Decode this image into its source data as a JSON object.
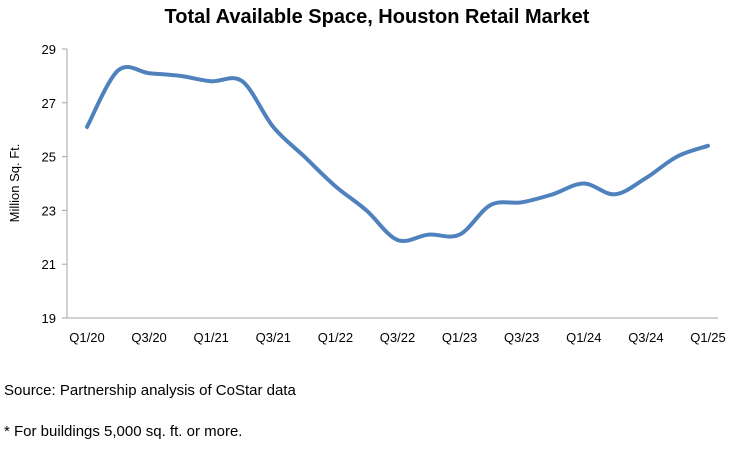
{
  "notes": {
    "source": "Source: Partnership analysis of CoStar data",
    "footnote": "* For buildings 5,000 sq. ft. or more."
  },
  "chart_data": {
    "type": "line",
    "title": "Total Available Space, Houston Retail Market",
    "xlabel": "",
    "ylabel": "Million Sq. Ft.",
    "ylim": [
      19,
      29
    ],
    "yticks": [
      19,
      21,
      23,
      25,
      27,
      29
    ],
    "grid": false,
    "legend": "none",
    "line_color": "#4f81bd",
    "categories": [
      "Q1/20",
      "Q2/20",
      "Q3/20",
      "Q4/20",
      "Q1/21",
      "Q2/21",
      "Q3/21",
      "Q4/21",
      "Q1/22",
      "Q2/22",
      "Q3/22",
      "Q4/22",
      "Q1/23",
      "Q2/23",
      "Q3/23",
      "Q4/23",
      "Q1/24",
      "Q2/24",
      "Q3/24",
      "Q4/24",
      "Q1/25"
    ],
    "tick_labels": [
      "Q1/20",
      "Q3/20",
      "Q1/21",
      "Q3/21",
      "Q1/22",
      "Q3/22",
      "Q1/23",
      "Q3/23",
      "Q1/24",
      "Q3/24",
      "Q1/25"
    ],
    "series": [
      {
        "values": [
          26.1,
          28.2,
          28.1,
          28.0,
          27.8,
          27.8,
          26.1,
          25.0,
          23.9,
          23.0,
          21.9,
          22.1,
          22.1,
          23.2,
          23.3,
          23.6,
          24.0,
          23.6,
          24.2,
          25.0,
          25.4
        ]
      }
    ]
  }
}
